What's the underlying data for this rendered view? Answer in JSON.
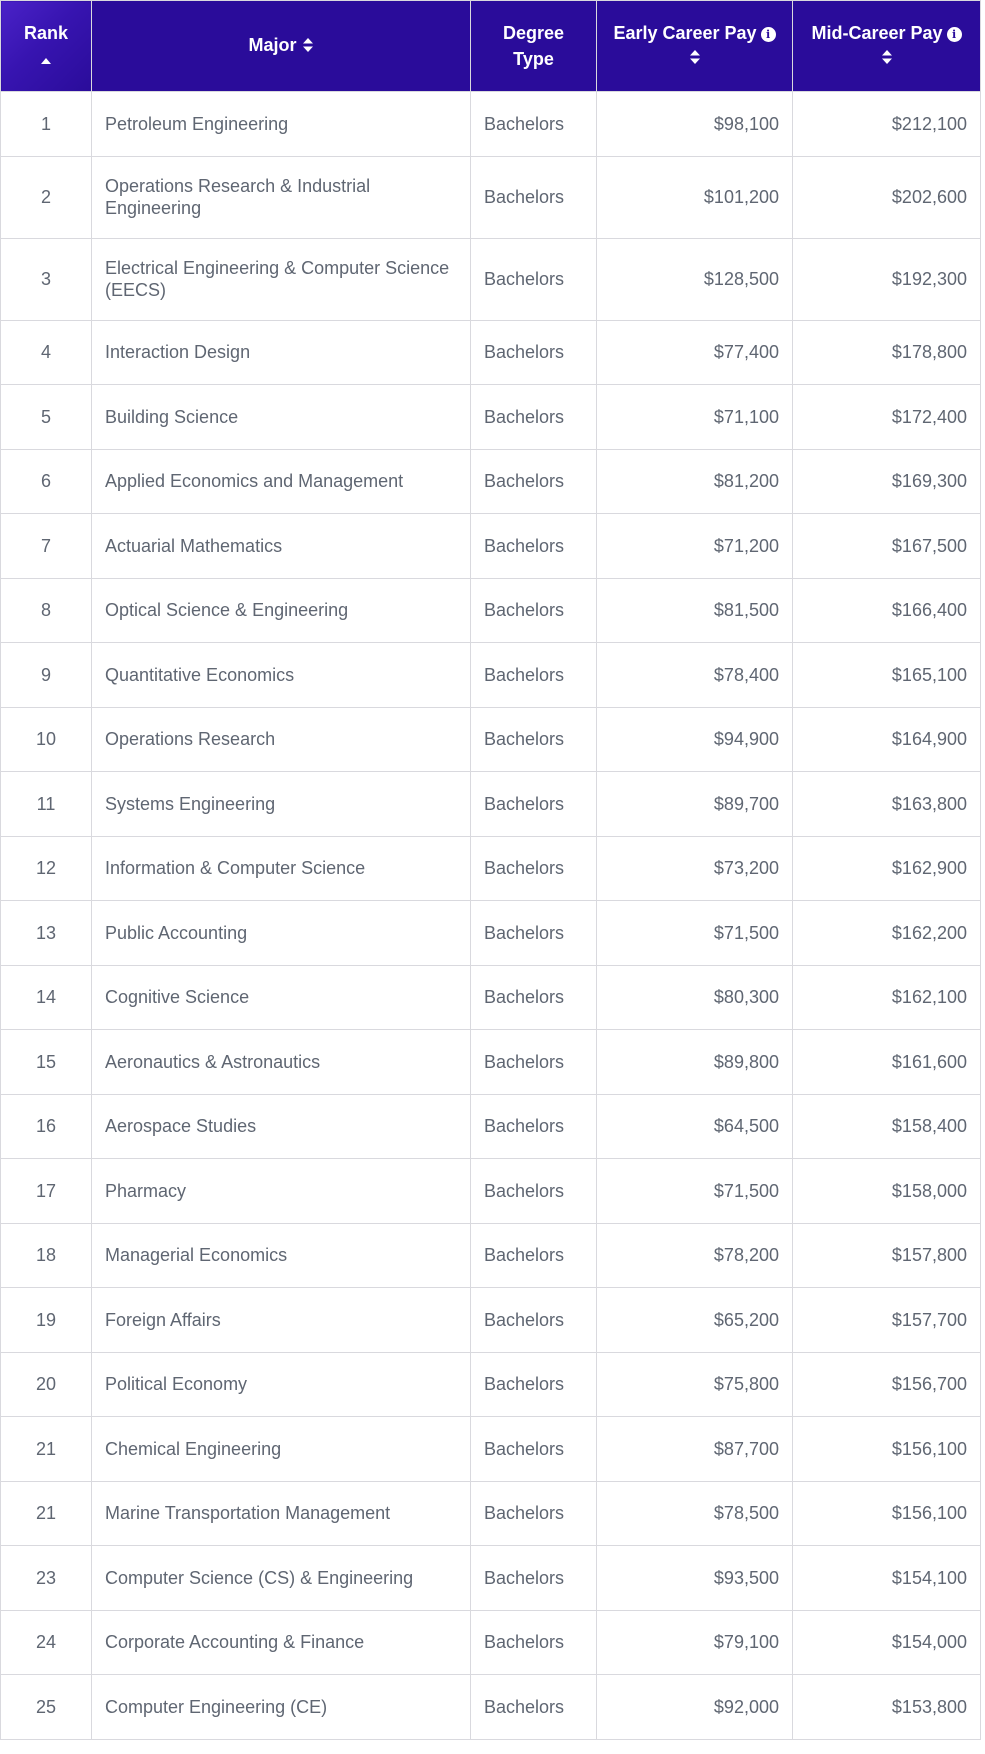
{
  "header": {
    "rank": "Rank",
    "major": "Major",
    "degree_line1": "Degree",
    "degree_line2": "Type",
    "early": "Early Career Pay",
    "mid": "Mid-Career Pay"
  },
  "icons": {
    "rank_sort": "sort-up-icon",
    "column_sort": "sort-icon",
    "info": "info-icon"
  },
  "colors": {
    "header_bg": "#2a0c9a",
    "header_text": "#ffffff",
    "cell_text": "#5f6672",
    "border": "#d9d9de"
  },
  "rows": [
    {
      "rank": "1",
      "major": "Petroleum Engineering",
      "degree": "Bachelors",
      "early": "$98,100",
      "mid": "$212,100"
    },
    {
      "rank": "2",
      "major": "Operations Research & Industrial Engineering",
      "degree": "Bachelors",
      "early": "$101,200",
      "mid": "$202,600"
    },
    {
      "rank": "3",
      "major": "Electrical Engineering & Computer Science (EECS)",
      "degree": "Bachelors",
      "early": "$128,500",
      "mid": "$192,300"
    },
    {
      "rank": "4",
      "major": "Interaction Design",
      "degree": "Bachelors",
      "early": "$77,400",
      "mid": "$178,800"
    },
    {
      "rank": "5",
      "major": "Building Science",
      "degree": "Bachelors",
      "early": "$71,100",
      "mid": "$172,400"
    },
    {
      "rank": "6",
      "major": "Applied Economics and Management",
      "degree": "Bachelors",
      "early": "$81,200",
      "mid": "$169,300"
    },
    {
      "rank": "7",
      "major": "Actuarial Mathematics",
      "degree": "Bachelors",
      "early": "$71,200",
      "mid": "$167,500"
    },
    {
      "rank": "8",
      "major": "Optical Science & Engineering",
      "degree": "Bachelors",
      "early": "$81,500",
      "mid": "$166,400"
    },
    {
      "rank": "9",
      "major": "Quantitative Economics",
      "degree": "Bachelors",
      "early": "$78,400",
      "mid": "$165,100"
    },
    {
      "rank": "10",
      "major": "Operations Research",
      "degree": "Bachelors",
      "early": "$94,900",
      "mid": "$164,900"
    },
    {
      "rank": "11",
      "major": "Systems Engineering",
      "degree": "Bachelors",
      "early": "$89,700",
      "mid": "$163,800"
    },
    {
      "rank": "12",
      "major": "Information & Computer Science",
      "degree": "Bachelors",
      "early": "$73,200",
      "mid": "$162,900"
    },
    {
      "rank": "13",
      "major": "Public Accounting",
      "degree": "Bachelors",
      "early": "$71,500",
      "mid": "$162,200"
    },
    {
      "rank": "14",
      "major": "Cognitive Science",
      "degree": "Bachelors",
      "early": "$80,300",
      "mid": "$162,100"
    },
    {
      "rank": "15",
      "major": "Aeronautics & Astronautics",
      "degree": "Bachelors",
      "early": "$89,800",
      "mid": "$161,600"
    },
    {
      "rank": "16",
      "major": "Aerospace Studies",
      "degree": "Bachelors",
      "early": "$64,500",
      "mid": "$158,400"
    },
    {
      "rank": "17",
      "major": "Pharmacy",
      "degree": "Bachelors",
      "early": "$71,500",
      "mid": "$158,000"
    },
    {
      "rank": "18",
      "major": "Managerial Economics",
      "degree": "Bachelors",
      "early": "$78,200",
      "mid": "$157,800"
    },
    {
      "rank": "19",
      "major": "Foreign Affairs",
      "degree": "Bachelors",
      "early": "$65,200",
      "mid": "$157,700"
    },
    {
      "rank": "20",
      "major": "Political Economy",
      "degree": "Bachelors",
      "early": "$75,800",
      "mid": "$156,700"
    },
    {
      "rank": "21",
      "major": "Chemical Engineering",
      "degree": "Bachelors",
      "early": "$87,700",
      "mid": "$156,100"
    },
    {
      "rank": "21",
      "major": "Marine Transportation Management",
      "degree": "Bachelors",
      "early": "$78,500",
      "mid": "$156,100"
    },
    {
      "rank": "23",
      "major": "Computer Science (CS) & Engineering",
      "degree": "Bachelors",
      "early": "$93,500",
      "mid": "$154,100"
    },
    {
      "rank": "24",
      "major": "Corporate Accounting & Finance",
      "degree": "Bachelors",
      "early": "$79,100",
      "mid": "$154,000"
    },
    {
      "rank": "25",
      "major": "Computer Engineering (CE)",
      "degree": "Bachelors",
      "early": "$92,000",
      "mid": "$153,800"
    }
  ]
}
